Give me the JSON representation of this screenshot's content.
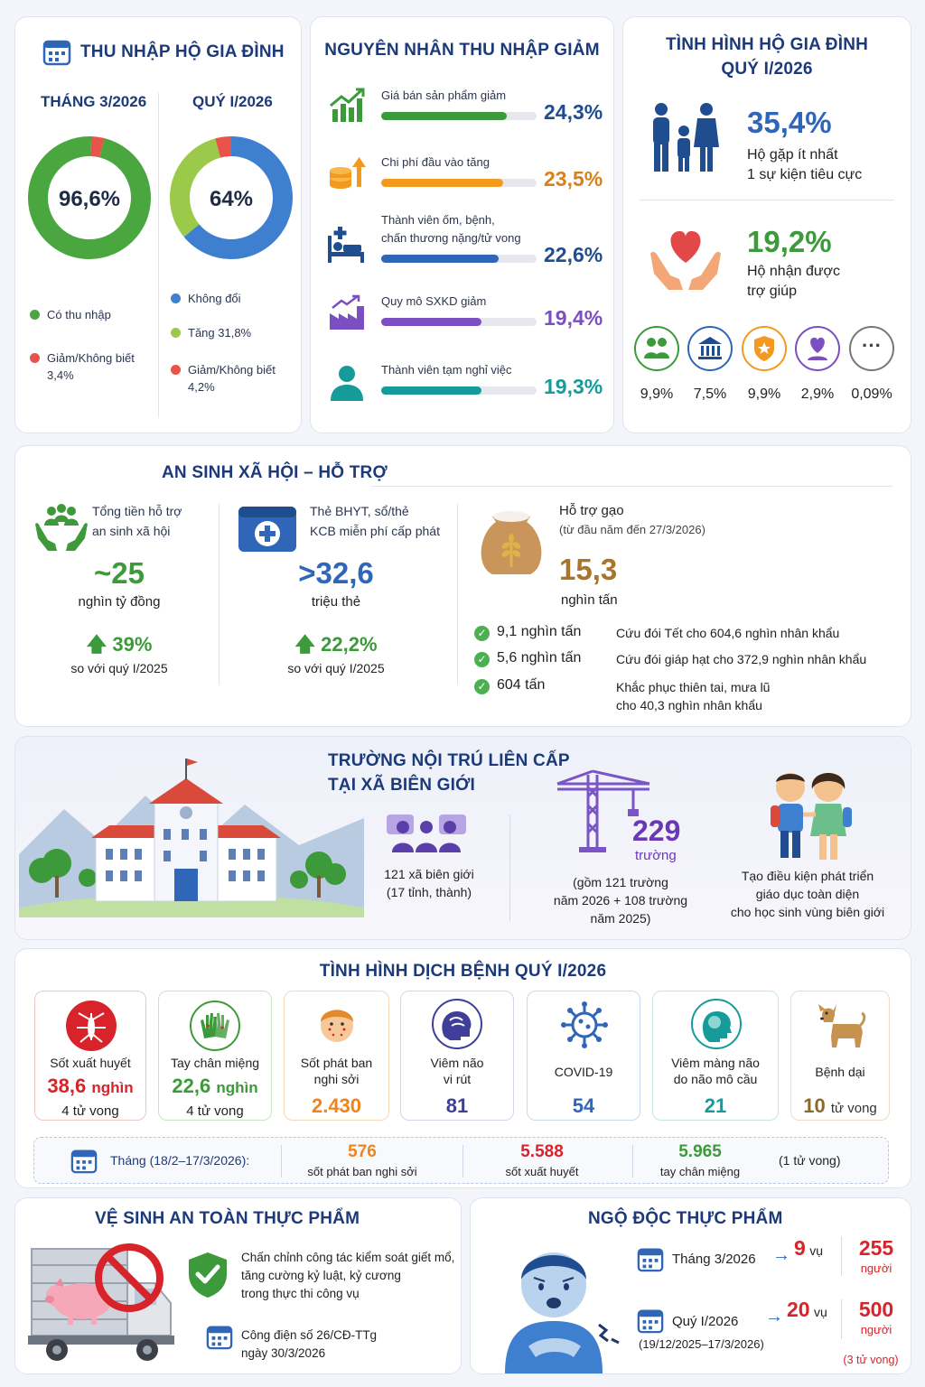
{
  "income": {
    "title": "THU NHẬP HỘ GIA ĐÌNH",
    "month_label": "THÁNG 3/2026",
    "quarter_label": "QUÝ I/2026",
    "month_value": "96,6%",
    "quarter_value": "64%",
    "month_legend": [
      {
        "label": "Có thu nhập",
        "color": "#4aa63f"
      },
      {
        "label": "Giảm/Không biết",
        "sub": "3,4%",
        "color": "#e8534a"
      }
    ],
    "quarter_legend": [
      {
        "label": "Không đổi",
        "color": "#3f7fd0"
      },
      {
        "label": "Tăng 31,8%",
        "color": "#9bc94a"
      },
      {
        "label": "Giảm/Không biết",
        "sub": "4,2%",
        "color": "#e8534a"
      }
    ],
    "month_share": [
      96.6,
      3.4
    ],
    "quarter_share": [
      64,
      31.8,
      4.2
    ]
  },
  "reasons": {
    "title": "NGUYÊN NHÂN THU NHẬP GIẢM",
    "items": [
      {
        "label": "Giá bán sản phẩm giảm",
        "value": "24,3%",
        "pct": 24.3,
        "color": "#3c9a3a"
      },
      {
        "label": "Chi phí đầu vào tăng",
        "value": "23,5%",
        "pct": 23.5,
        "color": "#f39a1e"
      },
      {
        "label": "Thành viên ốm, bệnh,",
        "label2": "chấn thương nặng/tử vong",
        "value": "22,6%",
        "pct": 22.6,
        "color": "#2f66b8"
      },
      {
        "label": "Quy mô SXKD giảm",
        "value": "19,4%",
        "pct": 19.4,
        "color": "#7b4fc2"
      },
      {
        "label": "Thành viên tạm nghỉ việc",
        "value": "19,3%",
        "pct": 19.3,
        "color": "#159c9a"
      }
    ]
  },
  "household": {
    "title1": "TÌNH HÌNH HỘ GIA ĐÌNH",
    "title2": "QUÝ I/2026",
    "stat1_value": "35,4%",
    "stat1_line1": "Hộ gặp ít nhất",
    "stat1_line2": "1 sự kiện tiêu cực",
    "stat2_value": "19,2%",
    "stat2_line1": "Hộ nhận được",
    "stat2_line2": "trợ giúp",
    "sources": [
      {
        "value": "9,9%",
        "icon": "people-icon",
        "color": "#3c9a3a"
      },
      {
        "value": "7,5%",
        "icon": "government-icon",
        "color": "#2f66b8"
      },
      {
        "value": "9,9%",
        "icon": "badge-icon",
        "color": "#f39a1e"
      },
      {
        "value": "2,9%",
        "icon": "heart-person-icon",
        "color": "#7b4fc2"
      },
      {
        "value": "0,09%",
        "icon": "more-icon",
        "color": "#555"
      }
    ]
  },
  "social": {
    "title": "AN SINH XÃ HỘI – HỖ TRỢ",
    "total_label1": "Tổng tiền hỗ trợ",
    "total_label2": "an sinh xã hội",
    "total_value": "~25",
    "total_unit": "nghìn tỷ đồng",
    "total_growth": "39%",
    "total_compare": "so với quý I/2025",
    "card_label1": "Thẻ BHYT, sổ/thẻ",
    "card_label2": "KCB miễn phí cấp phát",
    "card_value": ">32,6",
    "card_unit": "triệu thẻ",
    "card_growth": "22,2%",
    "card_compare": "so với quý I/2025",
    "rice_label": "Hỗ trợ gạo",
    "rice_period": "(từ đầu năm đến 27/3/2026)",
    "rice_value": "15,3",
    "rice_unit": "nghìn tấn",
    "rice_items": [
      {
        "amount": "9,1 nghìn tấn",
        "desc": "Cứu đói Tết cho 604,6 nghìn nhân khẩu"
      },
      {
        "amount": "5,6 nghìn tấn",
        "desc": "Cứu đói giáp hạt cho 372,9 nghìn nhân khẩu"
      },
      {
        "amount": "604 tấn",
        "desc": "Khắc phục thiên tai, mưa lũ",
        "desc2": "cho 40,3 nghìn nhân khẩu"
      }
    ]
  },
  "school": {
    "title1": "TRƯỜNG NỘI TRÚ LIÊN CẤP",
    "title2": "TẠI XÃ BIÊN GIỚI",
    "communes_line1": "121 xã biên giới",
    "communes_line2": "(17 tỉnh, thành)",
    "schools_value": "229",
    "schools_unit": "trường",
    "schools_note1": "(gồm 121 trường",
    "schools_note2": "năm 2026 + 108 trường",
    "schools_note3": "năm 2025)",
    "goal1": "Tạo điều kiện phát triển",
    "goal2": "giáo dục toàn diện",
    "goal3": "cho học sinh vùng biên giới"
  },
  "disease": {
    "title": "TÌNH HÌNH DỊCH BỆNH QUÝ I/2026",
    "items": [
      {
        "name": "Sốt xuất huyết",
        "value": "38,6",
        "unit": "nghìn",
        "deaths": "4 tử vong",
        "color": "#d8232a",
        "icon": "mosquito-icon"
      },
      {
        "name": "Tay chân miệng",
        "value": "22,6",
        "unit": "nghìn",
        "deaths": "4 tử vong",
        "color": "#3c9a3a",
        "icon": "hands-icon"
      },
      {
        "name": "Sốt phát ban",
        "name2": "nghi sởi",
        "value": "2.430",
        "color": "#f0831e",
        "icon": "child-rash-icon"
      },
      {
        "name": "Viêm não",
        "name2": "vi rút",
        "value": "81",
        "color": "#3f3f9a",
        "icon": "brain-icon"
      },
      {
        "name": "COVID-19",
        "value": "54",
        "color": "#2f66b8",
        "icon": "virus-icon"
      },
      {
        "name": "Viêm màng não",
        "name2": "do não mô cầu",
        "value": "21",
        "color": "#159c9a",
        "icon": "head-icon"
      },
      {
        "name": "Bệnh dại",
        "value": "10",
        "unit": "tử vong",
        "color": "#8a6a2a",
        "icon": "dog-icon"
      }
    ],
    "month_label": "Tháng (18/2–17/3/2026):",
    "month_stats": [
      {
        "value": "576",
        "label": "sốt phát ban nghi sởi",
        "color": "#f0831e"
      },
      {
        "value": "5.588",
        "label": "sốt xuất huyết",
        "color": "#d8232a"
      },
      {
        "value": "5.965",
        "label": "tay chân miệng",
        "color": "#3c9a3a"
      }
    ],
    "month_note": "(1 tử vong)"
  },
  "food_safety": {
    "title": "VỆ SINH AN TOÀN THỰC PHẨM",
    "text1": "Chấn chỉnh công tác kiểm soát giết mổ,",
    "text2": "tăng cường kỷ luật, kỷ cương",
    "text3": "trong thực thi công vụ",
    "doc1": "Công điện số 26/CĐ-TTg",
    "doc2": "ngày 30/3/2026"
  },
  "poisoning": {
    "title": "NGỘ ĐỘC THỰC PHẨM",
    "month_label": "Tháng 3/2026",
    "month_cases": "9",
    "month_people": "255",
    "quarter_label": "Quý I/2026",
    "quarter_period": "(19/12/2025–17/3/2026)",
    "quarter_cases": "20",
    "quarter_people": "500",
    "unit_case": "vụ",
    "unit_people": "người",
    "deaths": "(3 tử vong)"
  }
}
